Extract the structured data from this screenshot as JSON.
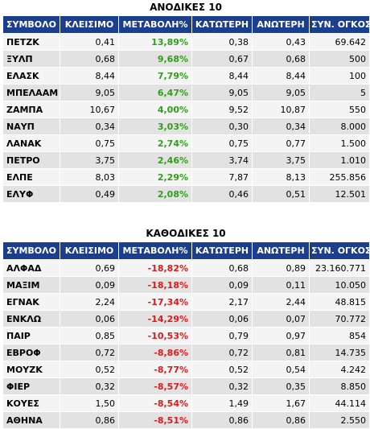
{
  "gainers": {
    "title": "ΑΝΟΔΙΚΕΣ 10",
    "headers": [
      "ΣΥΜΒΟΛΟ",
      "ΚΛΕΙΣΙΜΟ",
      "ΜΕΤΑΒΟΛΗ%",
      "ΚΑΤΩΤΕΡΗ",
      "ΑΝΩΤΕΡΗ",
      "ΣΥΝ. ΟΓΚΟΣ"
    ],
    "rows": [
      {
        "symbol": "ΠΕΤΖΚ",
        "close": "0,41",
        "change": "13,89%",
        "low": "0,38",
        "high": "0,43",
        "volume": "69.642"
      },
      {
        "symbol": "ΞΥΛΠ",
        "close": "0,68",
        "change": "9,68%",
        "low": "0,67",
        "high": "0,68",
        "volume": "500"
      },
      {
        "symbol": "ΕΛΑΣΚ",
        "close": "8,44",
        "change": "7,79%",
        "low": "8,44",
        "high": "8,44",
        "volume": "100"
      },
      {
        "symbol": "ΜΠΕΛΑΑΜ",
        "close": "9,05",
        "change": "6,47%",
        "low": "9,05",
        "high": "9,05",
        "volume": "5"
      },
      {
        "symbol": "ΖΑΜΠΑ",
        "close": "10,67",
        "change": "4,00%",
        "low": "9,52",
        "high": "10,87",
        "volume": "550"
      },
      {
        "symbol": "ΝΑΥΠ",
        "close": "0,34",
        "change": "3,03%",
        "low": "0,30",
        "high": "0,34",
        "volume": "8.000"
      },
      {
        "symbol": "ΛΑΝΑΚ",
        "close": "0,75",
        "change": "2,74%",
        "low": "0,75",
        "high": "0,77",
        "volume": "1.500"
      },
      {
        "symbol": "ΠΕΤΡΟ",
        "close": "3,75",
        "change": "2,46%",
        "low": "3,74",
        "high": "3,75",
        "volume": "1.010"
      },
      {
        "symbol": "ΕΛΠΕ",
        "close": "8,03",
        "change": "2,29%",
        "low": "7,87",
        "high": "8,13",
        "volume": "255.856"
      },
      {
        "symbol": "ΕΛΥΦ",
        "close": "0,49",
        "change": "2,08%",
        "low": "0,46",
        "high": "0,51",
        "volume": "12.501"
      }
    ]
  },
  "losers": {
    "title": "ΚΑΘΟΔΙΚΕΣ 10",
    "headers": [
      "ΣΥΜΒΟΛΟ",
      "ΚΛΕΙΣΙΜΟ",
      "ΜΕΤΑΒΟΛΗ%",
      "ΚΑΤΩΤΕΡΗ",
      "ΑΝΩΤΕΡΗ",
      "ΣΥΝ. ΟΓΚΟΣ"
    ],
    "rows": [
      {
        "symbol": "ΑΛΦΑΔ",
        "close": "0,69",
        "change": "-18,82%",
        "low": "0,68",
        "high": "0,89",
        "volume": "23.160.771"
      },
      {
        "symbol": "ΜΑΞΙΜ",
        "close": "0,09",
        "change": "-18,18%",
        "low": "0,09",
        "high": "0,11",
        "volume": "10.050"
      },
      {
        "symbol": "ΕΓΝΑΚ",
        "close": "2,24",
        "change": "-17,34%",
        "low": "2,17",
        "high": "2,44",
        "volume": "48.815"
      },
      {
        "symbol": "ΕΝΚΛΩ",
        "close": "0,06",
        "change": "-14,29%",
        "low": "0,06",
        "high": "0,07",
        "volume": "70.772"
      },
      {
        "symbol": "ΠΑΙΡ",
        "close": "0,85",
        "change": "-10,53%",
        "low": "0,79",
        "high": "0,97",
        "volume": "854"
      },
      {
        "symbol": "ΕΒΡΟΦ",
        "close": "0,72",
        "change": "-8,86%",
        "low": "0,72",
        "high": "0,81",
        "volume": "14.735"
      },
      {
        "symbol": "ΜΟΥΖΚ",
        "close": "0,52",
        "change": "-8,77%",
        "low": "0,52",
        "high": "0,54",
        "volume": "4.242"
      },
      {
        "symbol": "ΦΙΕΡ",
        "close": "0,32",
        "change": "-8,57%",
        "low": "0,32",
        "high": "0,35",
        "volume": "8.850"
      },
      {
        "symbol": "ΚΟΥΕΣ",
        "close": "1,50",
        "change": "-8,54%",
        "low": "1,49",
        "high": "1,67",
        "volume": "44.114"
      },
      {
        "symbol": "ΑΘΗΝΑ",
        "close": "0,86",
        "change": "-8,51%",
        "low": "0,86",
        "high": "0,86",
        "volume": "2.550"
      }
    ]
  },
  "colors": {
    "header_bg": "#1c3e8e",
    "header_text": "#ffffff",
    "row_odd": "#f4f4f4",
    "row_even": "#e2e2e2",
    "gain": "#2f9e1a",
    "loss": "#dd1a1a"
  }
}
